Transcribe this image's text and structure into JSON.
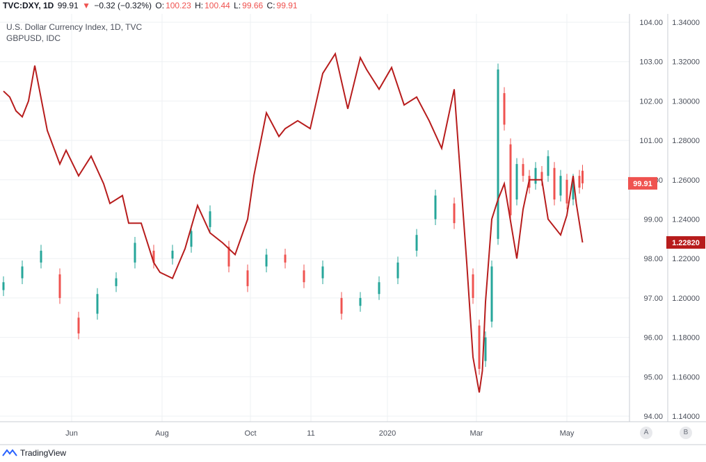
{
  "header": {
    "symbol": "TVC:DXY, 1D",
    "last": "99.91",
    "change_arrow": "▼",
    "change": "−0.32 (−0.32%)",
    "o_label": "O:",
    "o": "100.23",
    "h_label": "H:",
    "h": "100.44",
    "l_label": "L:",
    "l": "99.66",
    "c_label": "C:",
    "c": "99.91"
  },
  "legend": {
    "series1": "U.S. Dollar Currency Index, 1D, TVC",
    "series2": "GBPUSD, IDC"
  },
  "scale_buttons": {
    "a": "A",
    "b": "B"
  },
  "branding": {
    "name": "TradingView"
  },
  "colors": {
    "up": "#26a69a",
    "down": "#ef5350",
    "line": "#b71c1c",
    "price_label": "#ef5350",
    "line_label": "#b71c1c"
  },
  "chart_data": {
    "type": "line",
    "x_ticks": [
      "Jun",
      "Aug",
      "Oct",
      "11",
      "2020",
      "Mar",
      "May"
    ],
    "y_left": {
      "label": "U.S. Dollar Currency Index",
      "ticks": [
        "94.00",
        "95.00",
        "96.00",
        "97.00",
        "98.00",
        "99.00",
        "100.00",
        "101.00",
        "102.00",
        "103.00",
        "104.00"
      ],
      "range": [
        94,
        104
      ]
    },
    "y_right": {
      "label": "GBPUSD",
      "ticks": [
        "1.14000",
        "1.16000",
        "1.18000",
        "1.20000",
        "1.22000",
        "1.24000",
        "1.26000",
        "1.28000",
        "1.30000",
        "1.32000",
        "1.34000"
      ],
      "range": [
        1.14,
        1.34
      ]
    },
    "last_value_labels": {
      "dxy": "99.91",
      "gbpusd": "1.22820"
    },
    "series": [
      {
        "name": "U.S. Dollar Currency Index, 1D, TVC",
        "render": "candles",
        "axis": "left",
        "x": [
          0,
          0.03,
          0.06,
          0.09,
          0.12,
          0.15,
          0.18,
          0.21,
          0.24,
          0.27,
          0.3,
          0.33,
          0.36,
          0.39,
          0.42,
          0.45,
          0.48,
          0.51,
          0.54,
          0.57,
          0.6,
          0.63,
          0.66,
          0.69,
          0.72,
          0.75,
          0.76,
          0.77,
          0.78,
          0.79,
          0.8,
          0.81,
          0.82,
          0.83,
          0.84,
          0.85,
          0.86,
          0.87,
          0.88,
          0.89,
          0.9,
          0.91,
          0.92,
          0.925
        ],
        "close": [
          97.4,
          97.8,
          98.2,
          97.0,
          96.1,
          97.1,
          97.5,
          98.4,
          97.9,
          98.2,
          98.7,
          99.2,
          97.8,
          97.3,
          98.1,
          97.9,
          97.4,
          97.8,
          96.6,
          97.0,
          97.4,
          97.9,
          98.6,
          99.6,
          98.9,
          97.0,
          95.2,
          96.0,
          97.8,
          102.8,
          101.4,
          99.1,
          100.4,
          100.1,
          99.8,
          100.3,
          100.0,
          100.6,
          99.5,
          100.1,
          99.4,
          100.0,
          99.8,
          99.91
        ],
        "open": [
          97.2,
          97.5,
          97.9,
          97.6,
          96.5,
          96.6,
          97.3,
          97.9,
          98.2,
          98.0,
          98.3,
          98.8,
          98.3,
          97.7,
          97.8,
          98.1,
          97.7,
          97.5,
          97.0,
          96.8,
          97.1,
          97.5,
          98.2,
          99.0,
          99.4,
          97.6,
          96.3,
          95.4,
          96.4,
          98.5,
          102.2,
          100.9,
          99.5,
          100.4,
          100.1,
          99.9,
          100.2,
          100.1,
          100.3,
          99.6,
          100.0,
          99.5,
          100.1,
          100.23
        ]
      },
      {
        "name": "GBPUSD, IDC",
        "render": "line",
        "axis": "right",
        "x": [
          0,
          0.01,
          0.02,
          0.03,
          0.04,
          0.05,
          0.07,
          0.09,
          0.1,
          0.12,
          0.14,
          0.16,
          0.17,
          0.19,
          0.2,
          0.22,
          0.24,
          0.25,
          0.27,
          0.29,
          0.31,
          0.33,
          0.35,
          0.37,
          0.39,
          0.4,
          0.42,
          0.44,
          0.45,
          0.47,
          0.49,
          0.51,
          0.53,
          0.55,
          0.57,
          0.58,
          0.6,
          0.62,
          0.64,
          0.66,
          0.68,
          0.7,
          0.72,
          0.74,
          0.75,
          0.76,
          0.765,
          0.77,
          0.78,
          0.79,
          0.8,
          0.82,
          0.83,
          0.84,
          0.86,
          0.87,
          0.89,
          0.9,
          0.91,
          0.915,
          0.925
        ],
        "y": [
          1.305,
          1.302,
          1.295,
          1.292,
          1.3,
          1.318,
          1.285,
          1.268,
          1.275,
          1.262,
          1.272,
          1.258,
          1.248,
          1.252,
          1.238,
          1.238,
          1.218,
          1.213,
          1.21,
          1.225,
          1.247,
          1.233,
          1.228,
          1.222,
          1.24,
          1.262,
          1.294,
          1.282,
          1.286,
          1.29,
          1.286,
          1.314,
          1.324,
          1.296,
          1.322,
          1.316,
          1.306,
          1.317,
          1.298,
          1.302,
          1.29,
          1.276,
          1.306,
          1.218,
          1.17,
          1.152,
          1.163,
          1.198,
          1.24,
          1.25,
          1.258,
          1.22,
          1.245,
          1.26,
          1.26,
          1.24,
          1.232,
          1.242,
          1.262,
          1.248,
          1.2282
        ]
      }
    ]
  }
}
